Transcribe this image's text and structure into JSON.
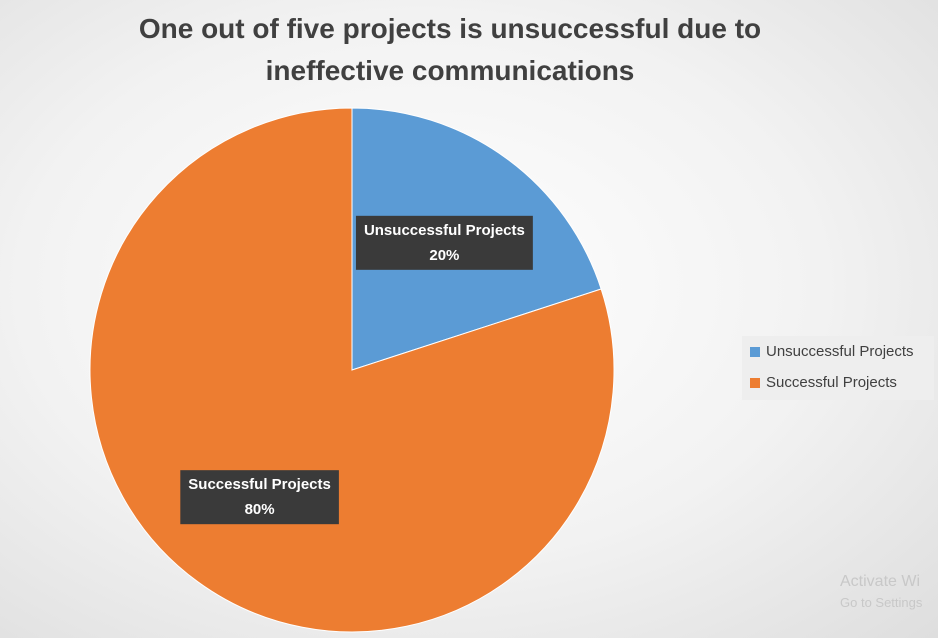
{
  "chart_data": {
    "type": "pie",
    "title": "One out of five projects is unsuccessful due to ineffective communications",
    "categories": [
      "Unsuccessful Projects",
      "Successful Projects"
    ],
    "values": [
      20,
      80
    ],
    "value_labels": [
      "20%",
      "80%"
    ],
    "colors": [
      "#5b9bd5",
      "#ed7d31"
    ],
    "legend": "right"
  },
  "overlay": {
    "line1": "Activate Wi",
    "line2": "Go to Settings"
  }
}
